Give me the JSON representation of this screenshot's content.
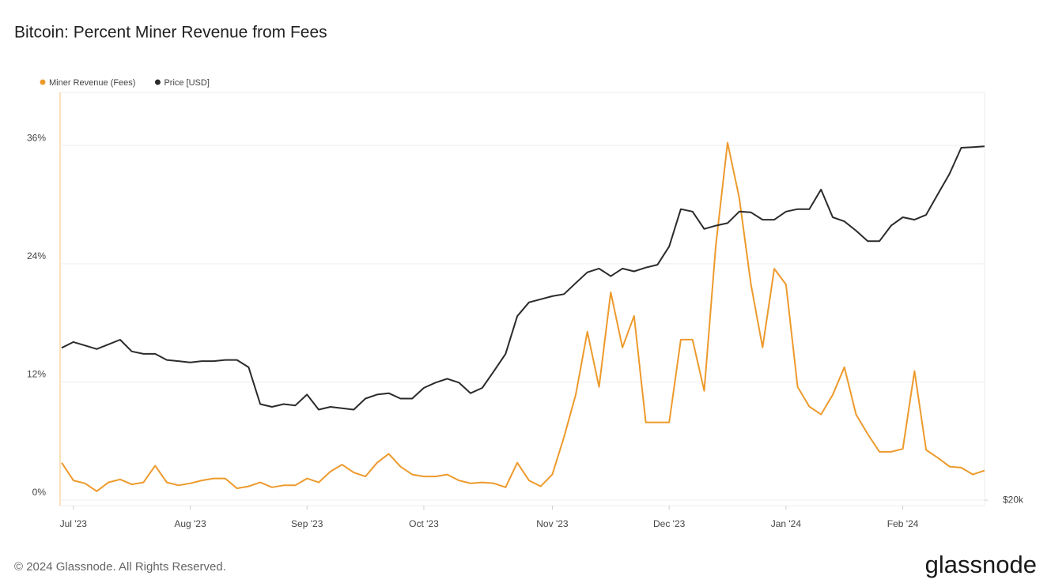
{
  "chart_data": {
    "type": "line",
    "title": "Bitcoin: Percent Miner Revenue from Fees",
    "footer": "© 2024 Glassnode. All Rights Reserved.",
    "brand": "glassnode",
    "x": [
      null,
      "Jul '23",
      null,
      null,
      null,
      null,
      null,
      null,
      null,
      null,
      null,
      "Aug '23",
      null,
      null,
      null,
      null,
      null,
      null,
      null,
      null,
      null,
      "Sep '23",
      null,
      null,
      null,
      null,
      null,
      null,
      null,
      null,
      null,
      "Oct '23",
      null,
      null,
      null,
      null,
      null,
      null,
      null,
      null,
      null,
      null,
      "Nov '23",
      null,
      null,
      null,
      null,
      null,
      null,
      null,
      null,
      null,
      "Dec '23",
      null,
      null,
      null,
      null,
      null,
      null,
      null,
      null,
      null,
      "Jan '24",
      null,
      null,
      null,
      null,
      null,
      null,
      null,
      null,
      null,
      "Feb '24",
      null,
      null,
      null,
      null,
      null,
      null,
      null
    ],
    "series": [
      {
        "name": "Miner Revenue (Fees)",
        "color": "#ed9a2c",
        "axis": "y",
        "values": [
          3.8,
          2.0,
          1.7,
          0.9,
          1.8,
          2.1,
          1.6,
          1.8,
          3.5,
          1.8,
          1.5,
          1.7,
          2.0,
          2.2,
          2.2,
          1.2,
          1.4,
          1.8,
          1.3,
          1.5,
          1.5,
          2.2,
          1.8,
          2.9,
          3.6,
          2.8,
          2.4,
          3.8,
          4.7,
          3.4,
          2.6,
          2.4,
          2.4,
          2.6,
          2.0,
          1.7,
          1.8,
          1.7,
          1.3,
          3.8,
          2.0,
          1.4,
          2.6,
          6.4,
          10.7,
          17.1,
          11.5,
          21.1,
          15.5,
          18.7,
          7.9,
          7.9,
          7.9,
          16.3,
          16.3,
          11.1,
          25.9,
          36.3,
          30.7,
          21.9,
          15.5,
          23.5,
          21.9,
          11.5,
          9.5,
          8.7,
          10.7,
          13.5,
          8.7,
          6.7,
          4.9,
          4.9,
          5.2,
          13.1,
          5.1,
          4.3,
          3.4,
          3.3,
          2.6,
          3.0
        ]
      },
      {
        "name": "Price [USD]",
        "color": "#2b2b2b",
        "axis": "y2",
        "values": [
          30500,
          31000,
          30700,
          30400,
          30800,
          31200,
          30200,
          30000,
          30000,
          29500,
          29400,
          29300,
          29400,
          29400,
          29500,
          29500,
          28900,
          26100,
          25900,
          26100,
          26000,
          26800,
          25700,
          25900,
          25800,
          25700,
          26500,
          26800,
          26900,
          26500,
          26500,
          27300,
          27700,
          28000,
          27700,
          26900,
          27300,
          28600,
          30000,
          33300,
          34600,
          34900,
          35200,
          35400,
          36500,
          37600,
          38000,
          37200,
          38000,
          37700,
          38100,
          38400,
          40400,
          44800,
          44500,
          42400,
          42800,
          43100,
          44500,
          44400,
          43500,
          43500,
          44500,
          44800,
          44800,
          47300,
          43800,
          43300,
          42200,
          41000,
          41000,
          42800,
          43800,
          43500,
          44100,
          46700,
          49400,
          53100,
          53200,
          53300
        ]
      }
    ],
    "ylim": [
      -0.56,
      41.4
    ],
    "yticks": [
      {
        "value": 0,
        "label": "0%"
      },
      {
        "value": 12,
        "label": "12%"
      },
      {
        "value": 24,
        "label": "24%"
      },
      {
        "value": 36,
        "label": "36%"
      }
    ],
    "y2lim": [
      19700,
      61900
    ],
    "y2scale": "log",
    "y2ticks": [
      {
        "value": 20000,
        "label": "$20k"
      }
    ],
    "grid": true,
    "legend": "top-left"
  }
}
